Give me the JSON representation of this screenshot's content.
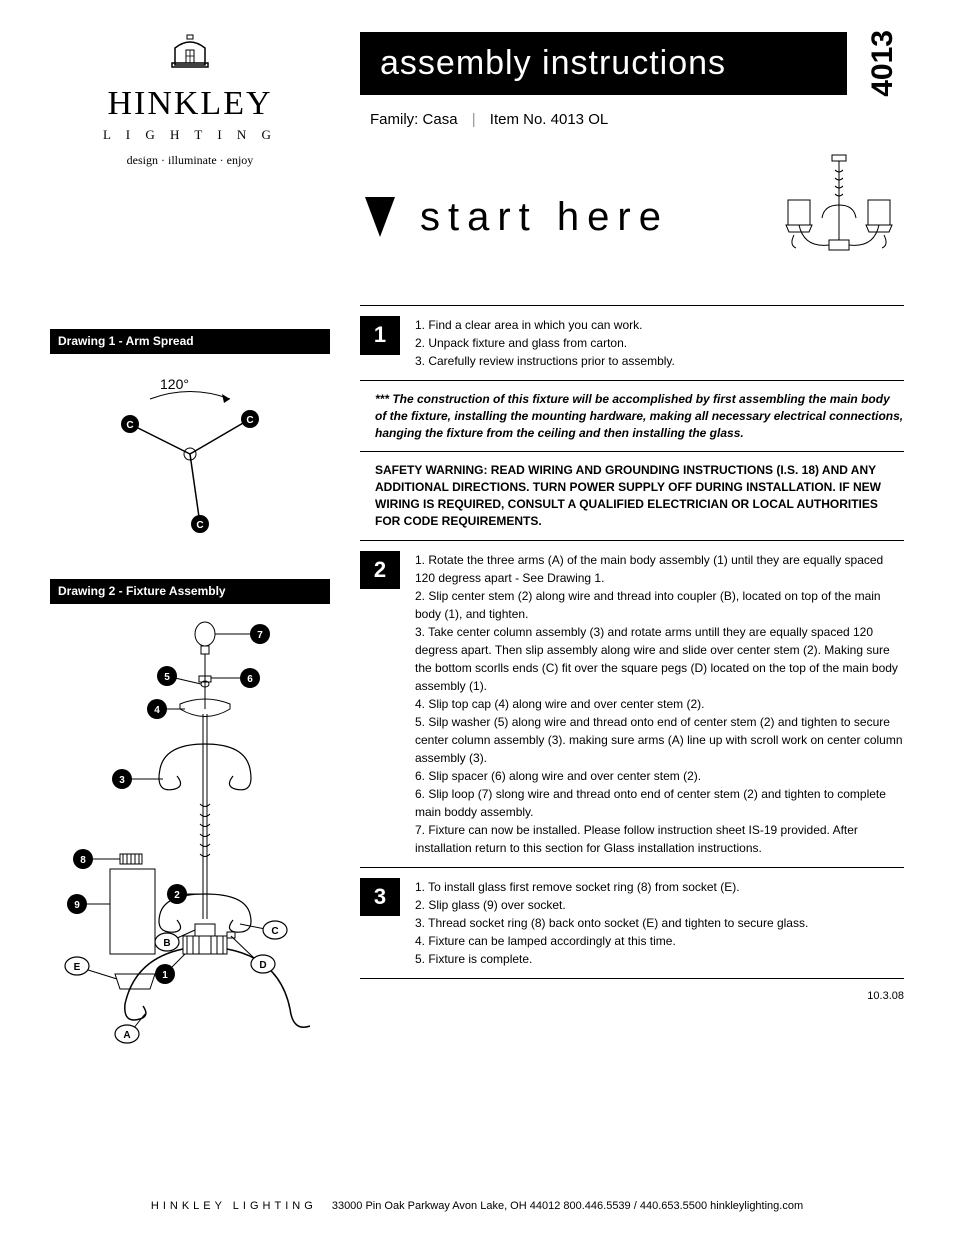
{
  "logo": {
    "name": "HINKLEY",
    "sub": "L I G H T I N G",
    "tag": "design · illuminate · enjoy"
  },
  "side_number": "4013",
  "title": "assembly instructions",
  "meta": {
    "family_label": "Family:",
    "family_value": "Casa",
    "item_label": "Item No.",
    "item_value": "4013 OL"
  },
  "start": "start here",
  "drawings": {
    "d1_title": "Drawing 1 - Arm Spread",
    "d1_angle": "120°",
    "d2_title": "Drawing 2 - Fixture Assembly",
    "labels": {
      "c": "C",
      "A": "A",
      "B": "B",
      "C2": "C",
      "D": "D",
      "E": "E"
    },
    "nums": {
      "n1": "1",
      "n2": "2",
      "n3": "3",
      "n4": "4",
      "n5": "5",
      "n6": "6",
      "n7": "7",
      "n8": "8",
      "n9": "9"
    }
  },
  "steps": {
    "s1_num": "1",
    "s1_1": "1. Find a clear area in which you can work.",
    "s1_2": "2. Unpack fixture and glass from carton.",
    "s1_3": "3. Carefully review instructions prior to assembly.",
    "note": "*** The construction of this fixture will be accomplished by first assembling the main body of the fixture, installing the mounting hardware, making all necessary electrical connections, hanging the fixture from the ceiling and then installing the glass.",
    "warn": "SAFETY WARNING: READ WIRING AND GROUNDING INSTRUCTIONS (I.S. 18) AND ANY ADDITIONAL DIRECTIONS. TURN POWER SUPPLY OFF DURING INSTALLATION. IF NEW WIRING IS REQUIRED, CONSULT A QUALIFIED ELECTRICIAN OR LOCAL AUTHORITIES FOR CODE REQUIREMENTS.",
    "s2_num": "2",
    "s2_1": "1. Rotate the three arms (A) of the main body assembly (1) until they are equally spaced 120 degress apart - See Drawing 1.",
    "s2_2": "2. Slip center stem (2) along wire and thread into coupler (B), located on top of the main body (1), and tighten.",
    "s2_3": "3. Take center column assembly (3) and rotate arms untill they are equally spaced 120 degress apart. Then slip assembly along wire and slide over center stem (2). Making sure the bottom scorlls ends (C) fit over the square pegs (D) located on the top of the main body assembly (1).",
    "s2_4": "4. Slip top cap (4) along wire and over center stem (2).",
    "s2_5": "5. Silp washer (5) along wire and thread onto end of center stem (2) and tighten to secure center column assembly (3). making sure arms (A) line up with scroll work on center column assembly (3).",
    "s2_6": "6. Slip spacer (6) along wire and over center stem (2).",
    "s2_7": "6. Slip loop (7) slong wire and thread onto end of center stem (2) and tighten to complete main boddy assembly.",
    "s2_8": "7. Fixture can now be installed. Please follow instruction sheet IS-19 provided. After installation return to this section for Glass installation instructions.",
    "s3_num": "3",
    "s3_1": "1. To install glass first remove socket ring (8) from socket (E).",
    "s3_2": "2. Slip glass (9) over socket.",
    "s3_3": "3. Thread socket ring (8) back onto socket (E) and tighten to secure glass.",
    "s3_4": "4. Fixture can be lamped accordingly at this time.",
    "s3_5": "5. Fixture is complete."
  },
  "date": "10.3.08",
  "footer": {
    "brand": "HINKLEY LIGHTING",
    "rest": "33000 Pin Oak Parkway   Avon Lake, OH  44012      800.446.5539 / 440.653.5500      hinkleylighting.com"
  },
  "colors": {
    "black": "#000000",
    "white": "#ffffff"
  }
}
